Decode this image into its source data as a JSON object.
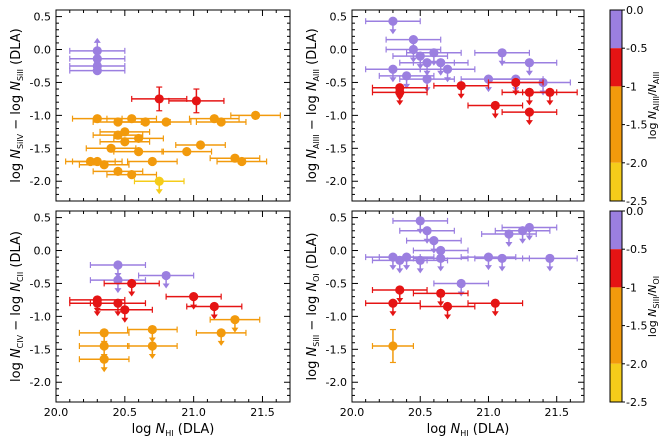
{
  "colorbar": {
    "ticks": [
      "0.0",
      "-0.5",
      "-1",
      "-1.5",
      "-2.0",
      "-2.5"
    ],
    "bands": [
      {
        "from": 0.0,
        "to": -0.5,
        "color": "#9b7fe0"
      },
      {
        "from": -0.5,
        "to": -1.0,
        "color": "#e51414"
      },
      {
        "from": -1.0,
        "to": -2.0,
        "color": "#f29a0c"
      },
      {
        "from": -2.0,
        "to": -2.5,
        "color": "#f5cc1a"
      }
    ],
    "top_label": {
      "pre": "log ",
      "n1": "N",
      "s1": "AlIII",
      "mid": "/",
      "n2": "N",
      "s2": "AlII"
    },
    "bottom_label": {
      "pre": "log ",
      "n1": "N",
      "s1": "SiII",
      "mid": "/",
      "n2": "N",
      "s2": "OI"
    }
  },
  "chart_data": [
    {
      "type": "scatter",
      "panel": "top-left",
      "ylabel": {
        "pre": "log ",
        "n1": "N",
        "s1": "SiIV",
        "mid": " − log ",
        "n2": "N",
        "s2": "SiII",
        "post": " (DLA)"
      },
      "xlabel": "",
      "xlim": [
        20.0,
        21.7
      ],
      "ylim": [
        -2.3,
        0.6
      ],
      "xticks": [],
      "yticks": [
        "0.5",
        "0.0",
        "-0.5",
        "-1.0",
        "-1.5",
        "-2.0"
      ],
      "series": [
        {
          "name": "purple",
          "color": "#9b7fe0",
          "limit": "lower",
          "points": [
            [
              20.3,
              -0.02
            ],
            [
              20.3,
              -0.14
            ],
            [
              20.3,
              -0.25
            ],
            [
              20.3,
              -0.32
            ]
          ],
          "xerr": 0.2
        },
        {
          "name": "red",
          "color": "#e51414",
          "limit": "none",
          "points": [
            [
              20.75,
              -0.75
            ],
            [
              21.02,
              -0.78
            ]
          ],
          "xerr": 0.2,
          "yerr": 0.18
        },
        {
          "name": "orange",
          "color": "#f29a0c",
          "limit": "none",
          "xerr": 0.18,
          "points": [
            [
              20.3,
              -1.05
            ],
            [
              20.45,
              -1.1
            ],
            [
              20.55,
              -1.05
            ],
            [
              20.65,
              -1.1
            ],
            [
              20.45,
              -1.3
            ],
            [
              20.5,
              -1.25
            ],
            [
              20.4,
              -1.5
            ],
            [
              20.5,
              -1.4
            ],
            [
              20.6,
              -1.35
            ],
            [
              20.6,
              -1.55
            ],
            [
              20.3,
              -1.7
            ],
            [
              20.35,
              -1.75
            ],
            [
              20.45,
              -1.85
            ],
            [
              20.55,
              -1.9
            ],
            [
              20.7,
              -1.7
            ],
            [
              20.8,
              -1.1
            ],
            [
              21.15,
              -1.05
            ],
            [
              21.2,
              -1.1
            ],
            [
              21.05,
              -1.45
            ],
            [
              21.3,
              -1.65
            ],
            [
              21.35,
              -1.7
            ],
            [
              21.45,
              -1.0
            ],
            [
              20.95,
              -1.55
            ],
            [
              20.25,
              -1.7
            ]
          ]
        },
        {
          "name": "yellow",
          "color": "#f5cc1a",
          "limit": "upper",
          "points": [
            [
              20.75,
              -2.0
            ]
          ],
          "xerr": 0.18
        }
      ]
    },
    {
      "type": "scatter",
      "panel": "top-right",
      "ylabel": {
        "pre": "log ",
        "n1": "N",
        "s1": "AlIII",
        "mid": " − log ",
        "n2": "N",
        "s2": "AlII",
        "post": " (DLA)"
      },
      "xlabel": "",
      "xlim": [
        20.0,
        21.7
      ],
      "ylim": [
        -2.3,
        0.6
      ],
      "xticks": [],
      "yticks": [
        "0.5",
        "0.0",
        "-0.5",
        "-1.0",
        "-1.5",
        "-2.0"
      ],
      "series": [
        {
          "name": "purple",
          "color": "#9b7fe0",
          "limit": "upper",
          "xerr": 0.2,
          "points": [
            [
              20.3,
              0.43
            ],
            [
              20.45,
              0.15
            ],
            [
              20.45,
              0.0
            ],
            [
              20.5,
              -0.1
            ],
            [
              20.55,
              -0.2
            ],
            [
              20.6,
              -0.05
            ],
            [
              20.65,
              -0.2
            ],
            [
              20.7,
              -0.3
            ],
            [
              20.3,
              -0.3
            ],
            [
              20.4,
              -0.4
            ],
            [
              20.55,
              -0.45
            ],
            [
              21.0,
              -0.45
            ],
            [
              21.1,
              -0.05
            ],
            [
              21.2,
              -0.45
            ],
            [
              21.3,
              -0.2
            ],
            [
              21.4,
              -0.5
            ]
          ]
        },
        {
          "name": "red",
          "color": "#e51414",
          "limit": "upper",
          "xerr": 0.2,
          "points": [
            [
              20.35,
              -0.58
            ],
            [
              20.35,
              -0.65
            ],
            [
              20.8,
              -0.55
            ],
            [
              21.05,
              -0.85
            ],
            [
              21.2,
              -0.5
            ],
            [
              21.3,
              -0.65
            ],
            [
              21.3,
              -0.95
            ],
            [
              21.45,
              -0.65
            ]
          ]
        }
      ]
    },
    {
      "type": "scatter",
      "panel": "bottom-left",
      "ylabel": {
        "pre": "log ",
        "n1": "N",
        "s1": "CIV",
        "mid": " − log ",
        "n2": "N",
        "s2": "CII",
        "post": " (DLA)"
      },
      "xlabel": {
        "pre": "log ",
        "n1": "N",
        "s1": "HI",
        "post": " (DLA)"
      },
      "xlim": [
        20.0,
        21.7
      ],
      "ylim": [
        -2.3,
        0.6
      ],
      "xticks": [
        "20.0",
        "20.5",
        "21.0",
        "21.5"
      ],
      "yticks": [
        "0.5",
        "0.0",
        "-0.5",
        "-1.0",
        "-1.5",
        "-2.0"
      ],
      "series": [
        {
          "name": "purple",
          "color": "#9b7fe0",
          "limit": "upper",
          "xerr": 0.2,
          "points": [
            [
              20.45,
              -0.22
            ],
            [
              20.45,
              -0.45
            ],
            [
              20.8,
              -0.38
            ]
          ]
        },
        {
          "name": "red",
          "color": "#e51414",
          "limit": "upper",
          "xerr": 0.2,
          "points": [
            [
              20.3,
              -0.75
            ],
            [
              20.3,
              -0.8
            ],
            [
              20.45,
              -0.8
            ],
            [
              20.5,
              -0.9
            ],
            [
              20.55,
              -0.5
            ],
            [
              21.0,
              -0.7
            ],
            [
              21.15,
              -0.85
            ]
          ]
        },
        {
          "name": "orange",
          "color": "#f29a0c",
          "limit": "upper",
          "xerr": 0.18,
          "points": [
            [
              20.35,
              -1.25
            ],
            [
              20.35,
              -1.45
            ],
            [
              20.35,
              -1.65
            ],
            [
              20.7,
              -1.2
            ],
            [
              20.7,
              -1.45
            ],
            [
              21.2,
              -1.25
            ],
            [
              21.3,
              -1.05
            ]
          ]
        }
      ]
    },
    {
      "type": "scatter",
      "panel": "bottom-right",
      "ylabel": {
        "pre": "log ",
        "n1": "N",
        "s1": "SiII",
        "mid": " − log ",
        "n2": "N",
        "s2": "OI",
        "post": " (DLA)"
      },
      "xlabel": {
        "pre": "log ",
        "n1": "N",
        "s1": "HI",
        "post": " (DLA)"
      },
      "xlim": [
        20.0,
        21.7
      ],
      "ylim": [
        -2.3,
        0.6
      ],
      "xticks": [
        "20.0",
        "20.5",
        "21.0",
        "21.5"
      ],
      "yticks": [
        "0.5",
        "0.0",
        "-0.5",
        "-1.0",
        "-1.5",
        "-2.0"
      ],
      "series": [
        {
          "name": "purple",
          "color": "#9b7fe0",
          "limit": "upper",
          "xerr": 0.2,
          "points": [
            [
              20.5,
              0.45
            ],
            [
              20.55,
              0.3
            ],
            [
              20.6,
              0.15
            ],
            [
              20.65,
              0.0
            ],
            [
              20.3,
              -0.1
            ],
            [
              20.35,
              -0.15
            ],
            [
              20.4,
              -0.1
            ],
            [
              20.5,
              -0.15
            ],
            [
              20.65,
              -0.12
            ],
            [
              20.8,
              -0.5
            ],
            [
              21.0,
              -0.1
            ],
            [
              21.1,
              -0.12
            ],
            [
              21.15,
              0.25
            ],
            [
              21.25,
              0.3
            ],
            [
              21.3,
              0.35
            ],
            [
              21.45,
              -0.12
            ]
          ]
        },
        {
          "name": "red",
          "color": "#e51414",
          "limit": "upper",
          "xerr": 0.2,
          "points": [
            [
              20.3,
              -0.8
            ],
            [
              20.35,
              -0.6
            ],
            [
              20.65,
              -0.65
            ],
            [
              20.7,
              -0.85
            ],
            [
              21.05,
              -0.8
            ]
          ]
        },
        {
          "name": "orange",
          "color": "#f29a0c",
          "limit": "none",
          "xerr": 0.15,
          "yerr": 0.25,
          "points": [
            [
              20.3,
              -1.45
            ]
          ]
        }
      ]
    }
  ]
}
